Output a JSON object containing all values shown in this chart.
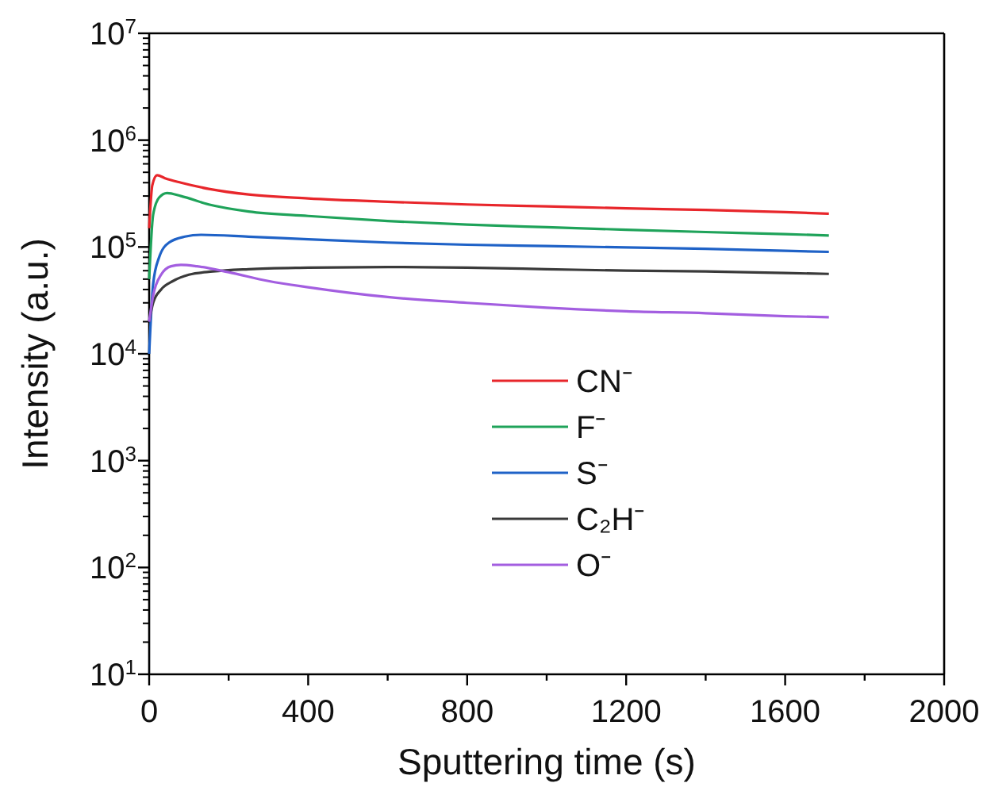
{
  "chart_data": {
    "type": "line",
    "xlabel": "Sputtering time (s)",
    "ylabel": "Intensity (a.u.)",
    "log": "y",
    "legend": "center",
    "grid": false,
    "marker": "none",
    "line_style": "solid",
    "xlim": [
      0,
      2000
    ],
    "ylim": [
      10,
      10000000
    ],
    "xticks": [
      0,
      {
        "value": 200,
        "label": null
      },
      400,
      {
        "value": 600,
        "label": null
      },
      800,
      {
        "value": 1000,
        "label": null
      },
      1200,
      {
        "value": 1400,
        "label": null
      },
      1600,
      {
        "value": 1800,
        "label": null
      },
      2000
    ],
    "yticks": [
      {
        "value": 10,
        "label": "10$^{1}$"
      },
      {
        "value": 100,
        "label": "10$^{2}$"
      },
      {
        "value": 1000,
        "label": "10$^{3}$"
      },
      {
        "value": 10000,
        "label": "10$^{4}$"
      },
      {
        "value": 100000,
        "label": "10$^{5}$"
      },
      {
        "value": 1000000,
        "label": "10$^{6}$"
      },
      {
        "value": 10000000,
        "label": "10$^{7}$"
      }
    ],
    "series": [
      {
        "name": "CN⁻",
        "color": "#e8262b",
        "x": [
          0,
          8,
          20,
          40,
          80,
          150,
          250,
          400,
          600,
          800,
          1000,
          1200,
          1400,
          1600,
          1710
        ],
        "values": [
          150000,
          380000,
          470000,
          440000,
          400000,
          350000,
          310000,
          285000,
          265000,
          250000,
          240000,
          230000,
          222000,
          212000,
          205000
        ]
      },
      {
        "name": "F⁻",
        "color": "#1fa35a",
        "x": [
          0,
          10,
          25,
          45,
          80,
          150,
          250,
          400,
          600,
          800,
          1000,
          1200,
          1400,
          1600,
          1710
        ],
        "values": [
          50000,
          200000,
          290000,
          320000,
          300000,
          250000,
          215000,
          195000,
          175000,
          162000,
          153000,
          145000,
          138000,
          132000,
          128000
        ]
      },
      {
        "name": "S⁻",
        "color": "#1f62c7",
        "x": [
          0,
          10,
          25,
          50,
          90,
          130,
          250,
          400,
          600,
          800,
          1000,
          1200,
          1400,
          1600,
          1710
        ],
        "values": [
          10000,
          45000,
          80000,
          110000,
          125000,
          130000,
          125000,
          118000,
          110000,
          105000,
          102000,
          99000,
          96000,
          92000,
          90000
        ]
      },
      {
        "name": "C₂H⁻",
        "color": "#3a3a3a",
        "x": [
          0,
          10,
          30,
          60,
          100,
          160,
          250,
          400,
          600,
          800,
          1000,
          1200,
          1400,
          1600,
          1710
        ],
        "values": [
          20000,
          30000,
          40000,
          48000,
          55000,
          59000,
          62000,
          64000,
          65000,
          64000,
          62000,
          60000,
          59000,
          57000,
          56000
        ]
      },
      {
        "name": "O⁻",
        "color": "#a35ee0",
        "x": [
          0,
          10,
          30,
          55,
          80,
          120,
          200,
          300,
          400,
          600,
          800,
          1000,
          1200,
          1400,
          1600,
          1710
        ],
        "values": [
          20000,
          35000,
          55000,
          66000,
          68000,
          66000,
          58000,
          48000,
          42000,
          34000,
          30000,
          27000,
          25000,
          24000,
          22500,
          22000
        ]
      }
    ]
  }
}
